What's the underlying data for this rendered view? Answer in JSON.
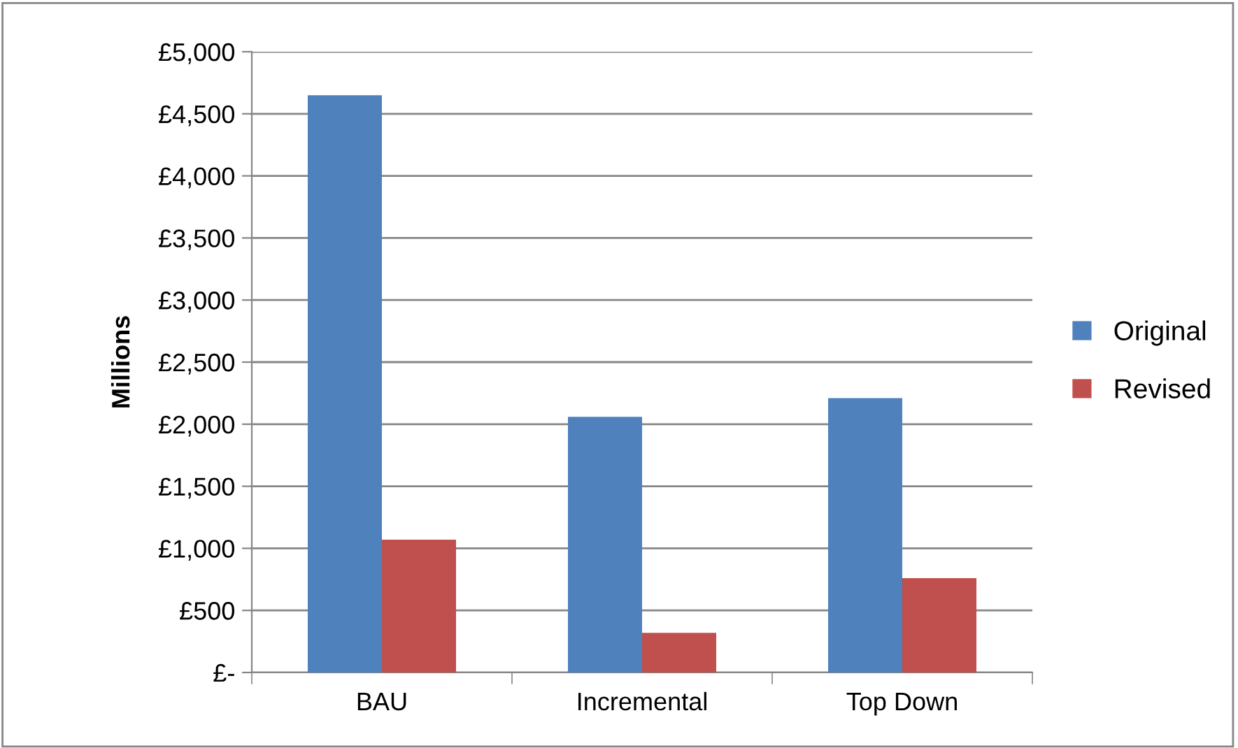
{
  "chart_data": {
    "type": "bar",
    "ylabel": "Millions",
    "categories": [
      "BAU",
      "Incremental",
      "Top Down"
    ],
    "series": [
      {
        "name": "Original",
        "color": "#4f81bd",
        "values": [
          4650,
          2060,
          2210
        ]
      },
      {
        "name": "Revised",
        "color": "#c0504d",
        "values": [
          1070,
          320,
          760
        ]
      }
    ],
    "ylim": [
      0,
      5000
    ],
    "yticks": [
      {
        "value": 0,
        "label": "£-"
      },
      {
        "value": 500,
        "label": "£500"
      },
      {
        "value": 1000,
        "label": "£1,000"
      },
      {
        "value": 1500,
        "label": "£1,500"
      },
      {
        "value": 2000,
        "label": "£2,000"
      },
      {
        "value": 2500,
        "label": "£2,500"
      },
      {
        "value": 3000,
        "label": "£3,000"
      },
      {
        "value": 3500,
        "label": "£3,500"
      },
      {
        "value": 4000,
        "label": "£4,000"
      },
      {
        "value": 4500,
        "label": "£4,500"
      },
      {
        "value": 5000,
        "label": "£5,000"
      }
    ],
    "grid": "y",
    "legend": "right"
  }
}
